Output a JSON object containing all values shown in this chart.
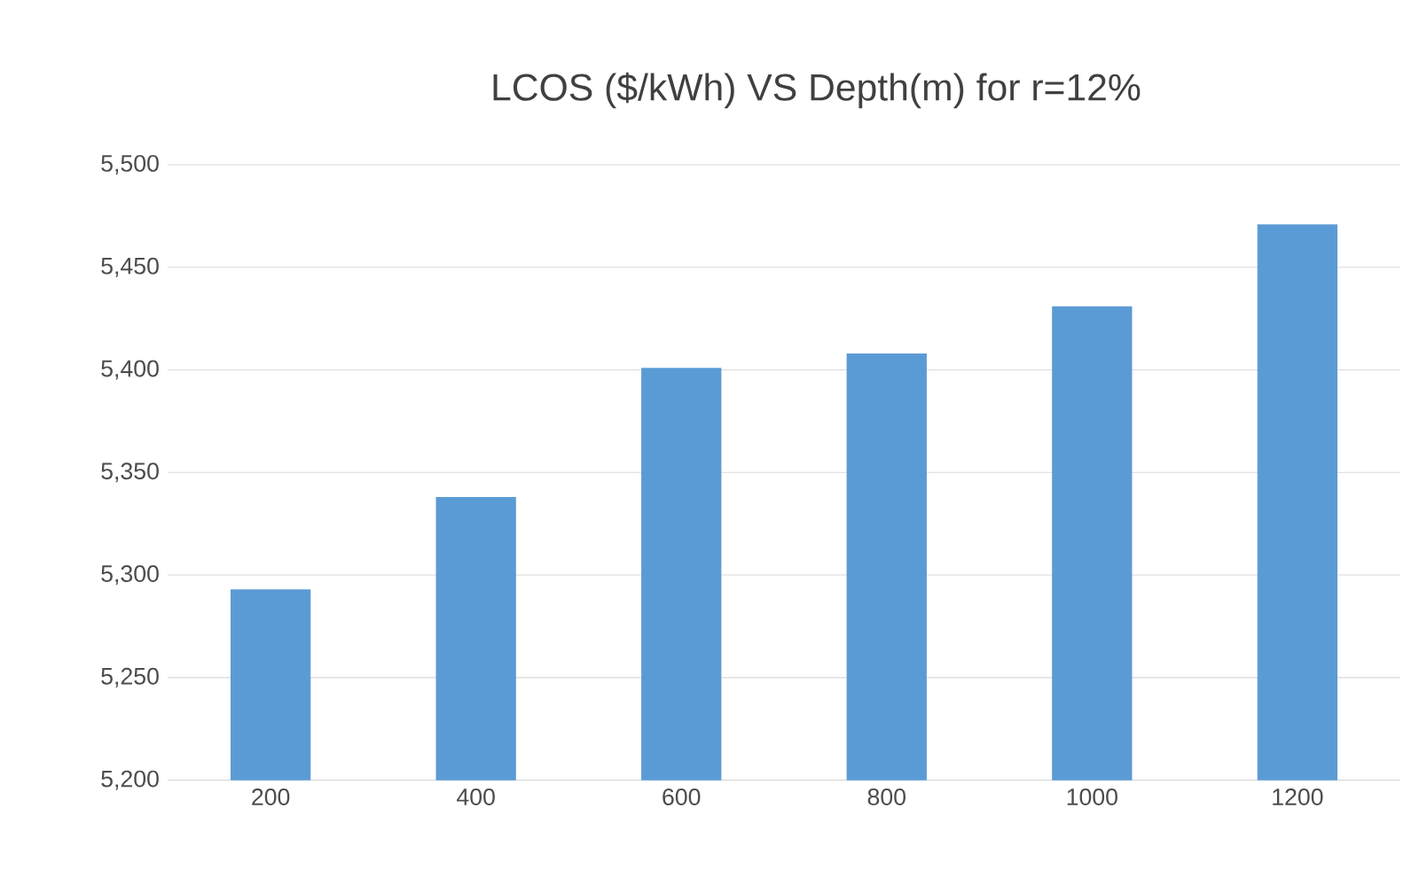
{
  "chart_data": {
    "type": "bar",
    "title": "LCOS    ($/kWh) VS Depth(m)  for r=12%",
    "categories": [
      "200",
      "400",
      "600",
      "800",
      "1000",
      "1200"
    ],
    "values": [
      5293,
      5338,
      5401,
      5408,
      5431,
      5471
    ],
    "color": "#5b9bd5",
    "ylim": [
      5200,
      5500
    ],
    "yticks": [
      {
        "value": 5200,
        "label": "5,200"
      },
      {
        "value": 5250,
        "label": "5,250"
      },
      {
        "value": 5300,
        "label": "5,300"
      },
      {
        "value": 5350,
        "label": "5,350"
      },
      {
        "value": 5400,
        "label": "5,400"
      },
      {
        "value": 5450,
        "label": "5,450"
      },
      {
        "value": 5500,
        "label": "5,500"
      }
    ],
    "grid": "y"
  }
}
